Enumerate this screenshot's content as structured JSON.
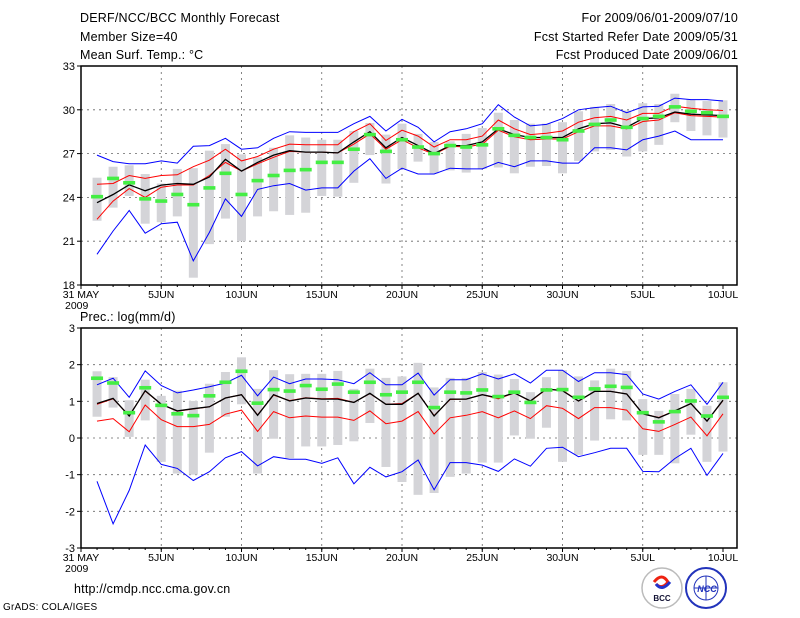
{
  "header": {
    "title": "DERF/NCC/BCC Monthly Forecast",
    "member_size": "Member Size=40",
    "period": "For 2009/06/01-2009/07/10",
    "start_date": "Fcst Started Refer Date 2009/05/31",
    "produced_date": "Fcst Produced Date 2009/06/01"
  },
  "footer": {
    "url": "http://cmdp.ncc.cma.gov.cn",
    "credit": "GrADS: COLA/IGES",
    "logo_bcc": "BCC",
    "logo_ncc": "NCC"
  },
  "colors": {
    "envelope": "#0000ff",
    "spread": "#ff0000",
    "mean": "#000000",
    "marker": "#44ee44",
    "bar": "#d4d4d8"
  },
  "chart_data": [
    {
      "type": "line",
      "title": "Mean Surf. Temp.: °C",
      "ylim": [
        18,
        33
      ],
      "yticks": [
        18,
        21,
        24,
        27,
        30,
        33
      ],
      "xticks": [
        {
          "day": 0,
          "label": "31 MAY"
        },
        {
          "day": 5,
          "label": "5JUN"
        },
        {
          "day": 10,
          "label": "10JUN"
        },
        {
          "day": 15,
          "label": "15JUN"
        },
        {
          "day": 20,
          "label": "20JUN"
        },
        {
          "day": 25,
          "label": "25JUN"
        },
        {
          "day": 30,
          "label": "30JUN"
        },
        {
          "day": 35,
          "label": "5JUL"
        },
        {
          "day": 40,
          "label": "10JUL"
        }
      ],
      "year_label": "2009",
      "grid": true,
      "x_days": "1..40 (2009-06-01 to 2009-07-10)",
      "bar_high": [
        25.35,
        26.1,
        26.2,
        25.6,
        24.95,
        25.95,
        26.0,
        27.2,
        27.65,
        26.95,
        26.75,
        27.4,
        28.25,
        28.1,
        27.95,
        27.95,
        28.55,
        29.1,
        28.3,
        29.05,
        28.35,
        27.8,
        27.85,
        28.35,
        28.75,
        29.8,
        29.3,
        29.05,
        29.05,
        29.15,
        29.9,
        30.2,
        30.4,
        29.95,
        30.45,
        30.4,
        31.1,
        30.7,
        30.6,
        30.65
      ],
      "bar_low": [
        22.4,
        23.3,
        24.1,
        22.2,
        22.3,
        22.7,
        18.5,
        20.8,
        22.55,
        21.0,
        22.7,
        23.05,
        22.8,
        22.95,
        24.1,
        24.05,
        25.0,
        26.9,
        24.95,
        25.95,
        26.45,
        25.65,
        25.85,
        25.7,
        25.95,
        26.05,
        25.65,
        26.1,
        26.15,
        25.65,
        26.5,
        27.15,
        27.25,
        26.8,
        27.15,
        27.6,
        29.15,
        28.55,
        28.25,
        28.1
      ],
      "series": [
        {
          "name": "max",
          "color": "#0000ff",
          "values": [
            26.9,
            26.45,
            26.3,
            26.3,
            26.5,
            26.35,
            27.5,
            27.55,
            28.05,
            27.3,
            27.4,
            28.05,
            28.5,
            28.45,
            28.45,
            28.45,
            29.05,
            29.55,
            28.55,
            29.35,
            28.8,
            27.8,
            28.5,
            28.7,
            29.05,
            30.35,
            29.5,
            28.9,
            29.0,
            29.4,
            30.0,
            30.15,
            30.25,
            29.8,
            30.2,
            30.25,
            30.8,
            30.7,
            30.7,
            30.6
          ]
        },
        {
          "name": "min",
          "color": "#0000ff",
          "values": [
            20.1,
            21.7,
            23.1,
            21.55,
            22.2,
            22.3,
            19.65,
            21.6,
            23.9,
            22.7,
            24.55,
            24.8,
            24.95,
            24.5,
            24.65,
            24.65,
            25.8,
            26.65,
            25.3,
            26.0,
            25.6,
            25.6,
            26.0,
            25.95,
            25.95,
            26.4,
            26.1,
            26.5,
            26.5,
            26.35,
            26.35,
            27.4,
            27.4,
            27.25,
            27.95,
            28.2,
            28.55,
            27.95,
            27.95,
            27.95
          ]
        },
        {
          "name": "upper",
          "color": "#ff0000",
          "values": [
            24.9,
            24.95,
            25.5,
            25.3,
            25.5,
            25.55,
            26.1,
            26.55,
            27.3,
            26.5,
            26.8,
            27.3,
            27.65,
            27.6,
            27.6,
            27.6,
            28.5,
            29.05,
            27.9,
            28.6,
            28.2,
            27.45,
            27.95,
            27.95,
            28.2,
            29.3,
            28.7,
            28.3,
            28.4,
            28.55,
            29.15,
            29.45,
            29.55,
            29.3,
            29.75,
            29.75,
            30.25,
            30.1,
            30.0,
            29.95
          ]
        },
        {
          "name": "lower",
          "color": "#ff0000",
          "values": [
            22.5,
            23.75,
            24.6,
            24.0,
            24.7,
            24.85,
            24.85,
            25.5,
            26.4,
            25.8,
            26.3,
            26.75,
            27.15,
            27.1,
            27.1,
            27.05,
            27.65,
            28.35,
            27.3,
            27.95,
            27.4,
            26.95,
            27.5,
            27.45,
            27.65,
            28.6,
            28.15,
            27.95,
            28.0,
            28.0,
            28.5,
            28.9,
            28.9,
            28.7,
            29.2,
            29.3,
            29.8,
            29.6,
            29.55,
            29.5
          ]
        },
        {
          "name": "mean",
          "color": "#000000",
          "values": [
            23.64,
            24.2,
            24.86,
            24.45,
            24.84,
            24.95,
            24.9,
            25.4,
            26.6,
            25.8,
            26.4,
            26.9,
            27.2,
            27.1,
            27.1,
            27.05,
            27.8,
            28.5,
            27.4,
            28.1,
            27.55,
            27.0,
            27.55,
            27.55,
            27.8,
            28.7,
            28.3,
            28.1,
            28.1,
            28.1,
            28.7,
            29.05,
            29.1,
            28.8,
            29.4,
            29.45,
            29.85,
            29.7,
            29.65,
            29.6
          ]
        }
      ],
      "markers": [
        24.05,
        25.3,
        25.0,
        23.9,
        23.75,
        24.2,
        23.5,
        24.65,
        25.65,
        24.2,
        25.15,
        25.5,
        25.85,
        25.9,
        26.4,
        26.4,
        27.3,
        28.3,
        27.15,
        27.95,
        27.45,
        27.0,
        27.55,
        27.45,
        27.6,
        28.7,
        28.25,
        28.1,
        28.1,
        27.95,
        28.55,
        29.0,
        29.3,
        28.8,
        29.4,
        29.55,
        30.2,
        29.9,
        29.8,
        29.55
      ]
    },
    {
      "type": "line",
      "title": "Prec.: log(mm/d)",
      "ylim": [
        -3,
        3
      ],
      "yticks": [
        -3,
        -2,
        -1,
        0,
        1,
        2,
        3
      ],
      "xticks": [
        {
          "day": 0,
          "label": "31 MAY"
        },
        {
          "day": 5,
          "label": "5JUN"
        },
        {
          "day": 10,
          "label": "10JUN"
        },
        {
          "day": 15,
          "label": "15JUN"
        },
        {
          "day": 20,
          "label": "20JUN"
        },
        {
          "day": 25,
          "label": "25JUN"
        },
        {
          "day": 30,
          "label": "30JUN"
        },
        {
          "day": 35,
          "label": "5JUL"
        },
        {
          "day": 40,
          "label": "10JUL"
        }
      ],
      "year_label": "2009",
      "grid": true,
      "x_days": "1..40 (2009-06-01 to 2009-07-10)",
      "bar_high": [
        1.82,
        1.66,
        1.03,
        1.59,
        1.15,
        1.29,
        1.01,
        1.48,
        1.8,
        2.2,
        1.34,
        1.85,
        1.74,
        1.75,
        1.75,
        1.83,
        1.34,
        1.89,
        1.64,
        1.68,
        2.05,
        1.38,
        1.64,
        1.64,
        1.8,
        1.73,
        1.61,
        1.25,
        1.66,
        1.85,
        1.68,
        1.57,
        1.89,
        1.83,
        1.06,
        0.74,
        1.2,
        1.34,
        0.88,
        1.52
      ],
      "bar_low": [
        0.58,
        0.83,
        0.03,
        0.48,
        -0.65,
        -0.97,
        -1.0,
        -0.4,
        0.58,
        0.92,
        -0.97,
        -0.02,
        -0.55,
        -0.23,
        -0.23,
        -0.19,
        -0.09,
        0.41,
        -0.79,
        -1.2,
        -1.55,
        -1.5,
        -1.06,
        -0.97,
        -0.67,
        -0.67,
        0.07,
        -0.02,
        0.28,
        -0.65,
        -0.46,
        -0.07,
        0.51,
        0.48,
        -0.46,
        -0.46,
        -0.69,
        0.09,
        -0.65,
        -0.37
      ],
      "series": [
        {
          "name": "max",
          "color": "#0000ff",
          "values": [
            1.45,
            1.63,
            1.11,
            1.83,
            1.43,
            1.23,
            1.31,
            1.4,
            1.5,
            1.71,
            1.15,
            1.66,
            1.48,
            1.61,
            1.61,
            1.59,
            1.48,
            1.78,
            1.45,
            1.45,
            1.77,
            1.17,
            1.59,
            1.59,
            1.75,
            1.61,
            1.75,
            1.5,
            1.85,
            1.85,
            1.54,
            1.78,
            1.78,
            1.73,
            1.2,
            1.06,
            1.27,
            1.45,
            0.92,
            1.52
          ]
        },
        {
          "name": "min",
          "color": "#0000ff",
          "values": [
            -1.18,
            -2.34,
            -1.43,
            -0.19,
            -0.72,
            -0.83,
            -1.16,
            -0.92,
            -0.54,
            -0.37,
            -0.76,
            -0.51,
            -0.58,
            -0.58,
            -0.69,
            -0.54,
            -1.25,
            -0.8,
            -1.06,
            -0.92,
            -0.6,
            -1.41,
            -0.67,
            -0.67,
            -0.74,
            -0.91,
            -0.57,
            -0.77,
            -0.28,
            -0.25,
            -0.51,
            -0.4,
            -0.28,
            -0.28,
            -0.91,
            -0.92,
            -0.56,
            -0.28,
            -1.02,
            -0.42
          ]
        },
        {
          "name": "upper",
          "color": "#ff0000",
          "values": [
            0.92,
            1.07,
            0.61,
            1.28,
            0.92,
            0.73,
            0.79,
            0.85,
            1.09,
            1.18,
            0.63,
            1.17,
            1.02,
            1.1,
            1.07,
            1.08,
            0.97,
            1.21,
            0.92,
            0.94,
            1.22,
            0.61,
            1.05,
            1.06,
            1.18,
            1.07,
            1.23,
            1.0,
            1.33,
            1.3,
            1.01,
            1.27,
            1.27,
            1.2,
            0.66,
            0.56,
            0.74,
            0.94,
            0.46,
            1.02
          ]
        },
        {
          "name": "lower",
          "color": "#ff0000",
          "values": [
            0.46,
            0.53,
            0.17,
            0.9,
            0.5,
            0.31,
            0.31,
            0.37,
            0.65,
            0.76,
            0.18,
            0.72,
            0.55,
            0.6,
            0.57,
            0.57,
            0.48,
            0.74,
            0.39,
            0.46,
            0.72,
            0.11,
            0.55,
            0.62,
            0.72,
            0.55,
            0.74,
            0.53,
            0.88,
            0.81,
            0.53,
            0.83,
            0.83,
            0.76,
            0.25,
            0.18,
            0.37,
            0.57,
            0.06,
            0.66
          ]
        },
        {
          "name": "mean",
          "color": "#000000",
          "values": [
            0.94,
            1.08,
            0.6,
            1.29,
            0.92,
            0.74,
            0.8,
            0.85,
            1.09,
            1.18,
            0.62,
            1.18,
            1.01,
            1.09,
            1.06,
            1.06,
            0.97,
            1.22,
            0.92,
            0.92,
            1.22,
            0.6,
            1.06,
            1.06,
            1.18,
            1.09,
            1.23,
            1.01,
            1.34,
            1.29,
            1.01,
            1.27,
            1.27,
            1.2,
            0.66,
            0.55,
            0.74,
            0.94,
            0.46,
            1.03
          ]
        }
      ],
      "markers": [
        1.63,
        1.5,
        0.69,
        1.37,
        0.89,
        0.66,
        0.61,
        1.15,
        1.52,
        1.82,
        0.95,
        1.32,
        1.28,
        1.43,
        1.33,
        1.47,
        1.25,
        1.52,
        1.18,
        1.25,
        1.52,
        0.83,
        1.25,
        1.23,
        1.31,
        1.13,
        1.25,
        0.97,
        1.31,
        1.32,
        1.11,
        1.34,
        1.41,
        1.38,
        0.69,
        0.44,
        0.72,
        1.01,
        0.6,
        1.11
      ]
    }
  ]
}
